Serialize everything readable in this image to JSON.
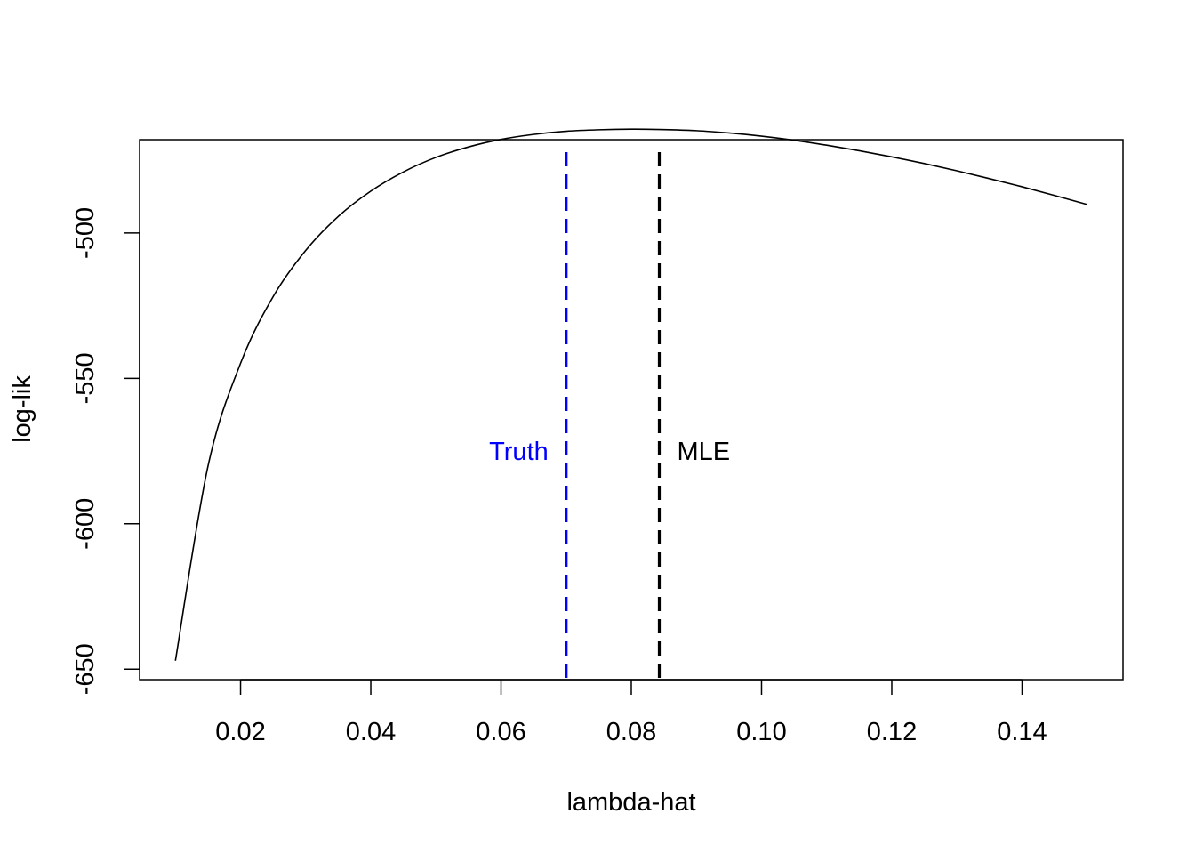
{
  "chart_data": {
    "type": "line",
    "xlabel": "lambda-hat",
    "ylabel": "log-lik",
    "xlim": [
      0.0045,
      0.1555
    ],
    "ylim": [
      -653.6,
      -467.9
    ],
    "x_ticks": [
      0.02,
      0.04,
      0.06,
      0.08,
      0.1,
      0.12,
      0.14
    ],
    "x_tick_labels": [
      "0.02",
      "0.04",
      "0.06",
      "0.08",
      "0.10",
      "0.12",
      "0.14"
    ],
    "y_ticks": [
      -650,
      -600,
      -550,
      -500
    ],
    "y_tick_labels": [
      "-650",
      "-600",
      "-550",
      "-500"
    ],
    "grid": false,
    "series": [
      {
        "color": "#000000",
        "x": [
          0.01,
          0.015,
          0.02,
          0.025,
          0.03,
          0.035,
          0.04,
          0.045,
          0.05,
          0.055,
          0.06,
          0.065,
          0.07,
          0.075,
          0.08,
          0.0843,
          0.09,
          0.095,
          0.1,
          0.105,
          0.11,
          0.115,
          0.12,
          0.125,
          0.13,
          0.135,
          0.14,
          0.145,
          0.15
        ],
        "y": [
          -647.1,
          -580.2,
          -544.8,
          -521.9,
          -506.0,
          -494.3,
          -485.6,
          -479.0,
          -474.0,
          -470.4,
          -467.8,
          -466.1,
          -465.0,
          -464.5,
          -464.3,
          -464.4,
          -464.8,
          -465.6,
          -466.7,
          -468.1,
          -469.8,
          -471.7,
          -473.8,
          -476.1,
          -478.6,
          -481.3,
          -484.1,
          -487.1,
          -490.2
        ]
      }
    ],
    "vlines": [
      {
        "x": 0.07,
        "label": "Truth",
        "color": "#0000ff",
        "label_side": "left"
      },
      {
        "x": 0.0843,
        "label": "MLE",
        "color": "#000000",
        "label_side": "right"
      }
    ],
    "vline_label_y": -575
  }
}
